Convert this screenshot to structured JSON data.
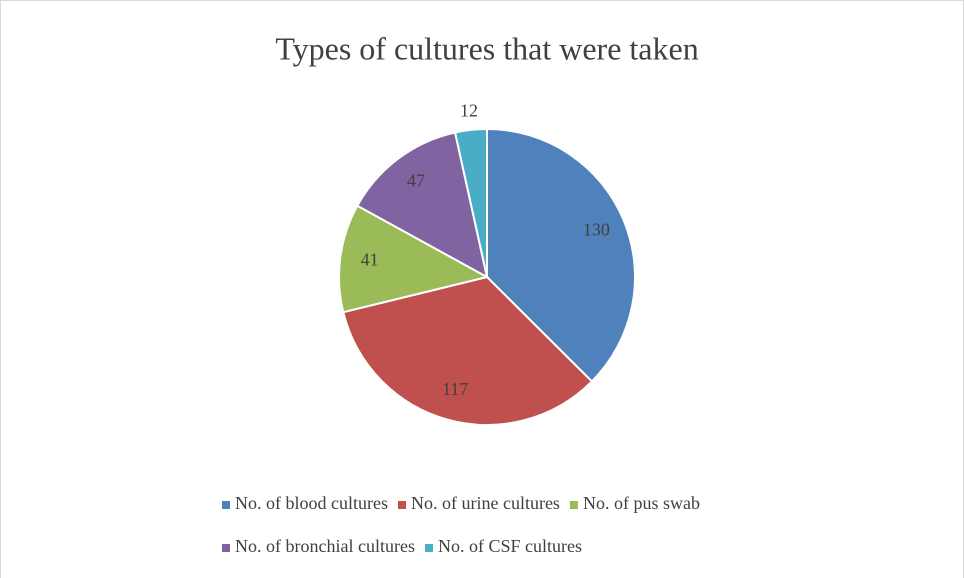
{
  "chart_data": {
    "type": "pie",
    "title": "Types of cultures that were taken",
    "categories": [
      "No. of blood cultures",
      "No. of urine cultures",
      "No. of pus swab",
      "No. of bronchial cultures",
      "No. of CSF cultures"
    ],
    "values": [
      130,
      117,
      41,
      47,
      12
    ],
    "colors": [
      "#4f81bd",
      "#c0504d",
      "#9bbb59",
      "#8064a2",
      "#4bacc6"
    ],
    "legend": "bottom"
  }
}
